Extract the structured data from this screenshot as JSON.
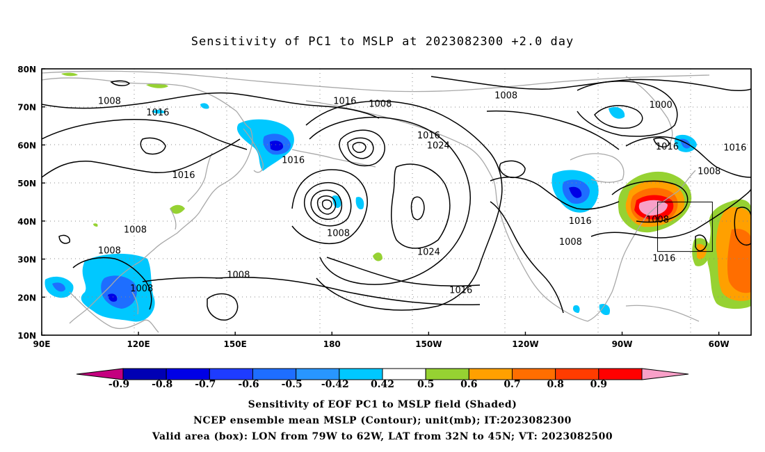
{
  "title": "Sensitivity of PC1 to MSLP at 2023082300 +2.0 day",
  "map": {
    "lat_labels": [
      "80N",
      "70N",
      "60N",
      "50N",
      "40N",
      "30N",
      "20N",
      "10N"
    ],
    "lon_labels": [
      "90E",
      "120E",
      "150E",
      "180",
      "150W",
      "120W",
      "90W",
      "60W"
    ],
    "lat_values": [
      80,
      70,
      60,
      50,
      40,
      30,
      20,
      10
    ],
    "lon_values": [
      90,
      120,
      150,
      180,
      210,
      240,
      270,
      300
    ],
    "lon_range": [
      90,
      310
    ],
    "lat_range": [
      10,
      80
    ],
    "contour_labels": [
      {
        "text": "1008",
        "lon": 111,
        "lat": 71.5
      },
      {
        "text": "1016",
        "lon": 126,
        "lat": 68.5
      },
      {
        "text": "1016",
        "lon": 134,
        "lat": 52
      },
      {
        "text": "1016",
        "lon": 168,
        "lat": 56
      },
      {
        "text": "1016",
        "lon": 184,
        "lat": 71.5
      },
      {
        "text": "1008",
        "lon": 195,
        "lat": 70.8
      },
      {
        "text": "1016",
        "lon": 210,
        "lat": 62.5
      },
      {
        "text": "1024",
        "lon": 213,
        "lat": 59.8
      },
      {
        "text": "1008",
        "lon": 182,
        "lat": 36.8
      },
      {
        "text": "1024",
        "lon": 210,
        "lat": 31.8
      },
      {
        "text": "1016",
        "lon": 220,
        "lat": 21.8
      },
      {
        "text": "1008",
        "lon": 234,
        "lat": 73
      },
      {
        "text": "1016",
        "lon": 257,
        "lat": 40
      },
      {
        "text": "1008",
        "lon": 254,
        "lat": 34.5
      },
      {
        "text": "1016",
        "lon": 284,
        "lat": 59.5
      },
      {
        "text": "1000",
        "lon": 282,
        "lat": 70.5
      },
      {
        "text": "1008",
        "lon": 297,
        "lat": 53
      },
      {
        "text": "1016",
        "lon": 305,
        "lat": 59.3
      },
      {
        "text": "1008",
        "lon": 281,
        "lat": 40.3
      },
      {
        "text": "1016",
        "lon": 283,
        "lat": 30.2
      },
      {
        "text": "1008",
        "lon": 111,
        "lat": 32.2
      },
      {
        "text": "1008",
        "lon": 119,
        "lat": 37.7
      },
      {
        "text": "1008",
        "lon": 121,
        "lat": 22.2
      },
      {
        "text": "1008",
        "lon": 151,
        "lat": 25.8
      }
    ],
    "valid_box": {
      "lon_min": 281,
      "lon_max": 298,
      "lat_min": 32,
      "lat_max": 45
    }
  },
  "colorbar": {
    "labels": [
      "-0.9",
      "-0.8",
      "-0.7",
      "-0.6",
      "-0.5",
      "-0.42",
      "0.42",
      "0.5",
      "0.6",
      "0.7",
      "0.8",
      "0.9"
    ],
    "colors": [
      "#c4007f",
      "#0000b4",
      "#0000e6",
      "#1e3cff",
      "#1e6eff",
      "#2896ff",
      "#00c8ff",
      "#ffffff",
      "#96d232",
      "#ffa000",
      "#ff6e00",
      "#ff3c00",
      "#ff0000",
      "#f8a0c8"
    ]
  },
  "footer": {
    "line1": "Sensitivity of EOF PC1 to MSLP field (Shaded)",
    "line2": "NCEP ensemble mean MSLP (Contour); unit(mb); IT:2023082300",
    "line3": "Valid area (box): LON from 79W to 62W, LAT from 32N to 45N; VT: 2023082500"
  }
}
